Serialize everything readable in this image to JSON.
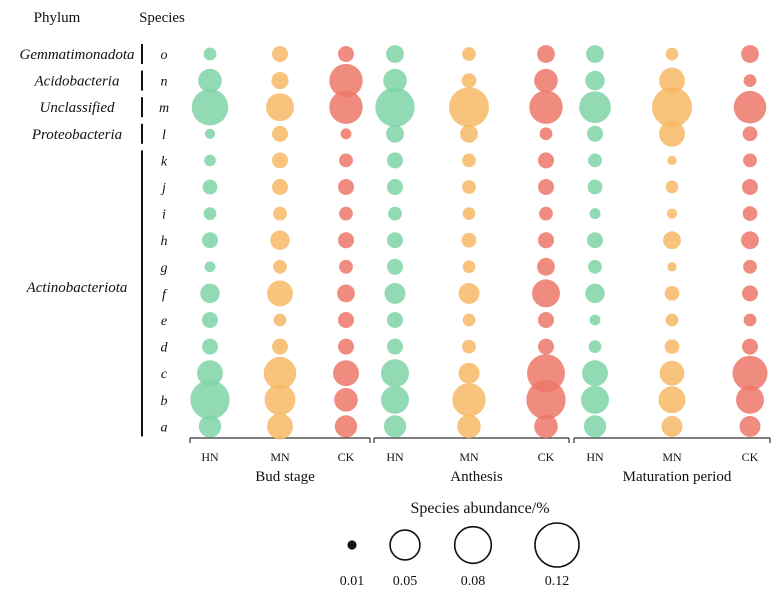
{
  "chart_data": {
    "type": "bubble",
    "headers": {
      "phylum": "Phylum",
      "species": "Species"
    },
    "species": [
      "o",
      "n",
      "m",
      "l",
      "k",
      "j",
      "i",
      "h",
      "g",
      "f",
      "e",
      "d",
      "c",
      "b",
      "a"
    ],
    "phyla": [
      {
        "name": "Gemmatimonadota",
        "species": [
          "o"
        ]
      },
      {
        "name": "Acidobacteria",
        "species": [
          "n"
        ]
      },
      {
        "name": "Unclassified",
        "species": [
          "m"
        ]
      },
      {
        "name": "Proteobacteria",
        "species": [
          "l"
        ]
      },
      {
        "name": "Actinobacteriota",
        "species": [
          "k",
          "j",
          "i",
          "h",
          "g",
          "f",
          "e",
          "d",
          "c",
          "b",
          "a"
        ]
      }
    ],
    "stages": [
      {
        "name": "Bud stage",
        "groups": [
          "HN",
          "MN",
          "CK"
        ]
      },
      {
        "name": "Anthesis",
        "groups": [
          "HN",
          "MN",
          "CK"
        ]
      },
      {
        "name": "Maturation period",
        "groups": [
          "HN",
          "MN",
          "CK"
        ]
      }
    ],
    "group_colors": {
      "HN": "#7fd3a6",
      "MN": "#f7b865",
      "CK": "#ec7868"
    },
    "value_unit": "Species abundance/%",
    "series": [
      {
        "stage": "Bud stage",
        "group": "HN",
        "values": [
          0.008,
          0.04,
          0.11,
          0.004,
          0.006,
          0.012,
          0.008,
          0.015,
          0.005,
          0.025,
          0.015,
          0.015,
          0.05,
          0.13,
          0.035
        ]
      },
      {
        "stage": "Bud stage",
        "group": "MN",
        "values": [
          0.015,
          0.018,
          0.06,
          0.015,
          0.015,
          0.015,
          0.01,
          0.025,
          0.01,
          0.05,
          0.008,
          0.015,
          0.085,
          0.075,
          0.05
        ]
      },
      {
        "stage": "Bud stage",
        "group": "CK",
        "values": [
          0.015,
          0.09,
          0.09,
          0.005,
          0.01,
          0.015,
          0.01,
          0.015,
          0.01,
          0.02,
          0.015,
          0.015,
          0.05,
          0.04,
          0.035
        ]
      },
      {
        "stage": "Anthesis",
        "group": "HN",
        "values": [
          0.02,
          0.04,
          0.13,
          0.02,
          0.015,
          0.015,
          0.01,
          0.015,
          0.015,
          0.03,
          0.015,
          0.015,
          0.06,
          0.06,
          0.035
        ]
      },
      {
        "stage": "Anthesis",
        "group": "MN",
        "values": [
          0.01,
          0.012,
          0.135,
          0.02,
          0.01,
          0.01,
          0.008,
          0.012,
          0.008,
          0.03,
          0.008,
          0.01,
          0.03,
          0.09,
          0.04
        ]
      },
      {
        "stage": "Anthesis",
        "group": "CK",
        "values": [
          0.02,
          0.04,
          0.09,
          0.008,
          0.015,
          0.015,
          0.01,
          0.015,
          0.02,
          0.06,
          0.015,
          0.015,
          0.12,
          0.13,
          0.04
        ]
      },
      {
        "stage": "Maturation period",
        "group": "HN",
        "values": [
          0.02,
          0.025,
          0.08,
          0.015,
          0.01,
          0.012,
          0.005,
          0.015,
          0.01,
          0.025,
          0.005,
          0.008,
          0.05,
          0.06,
          0.035
        ]
      },
      {
        "stage": "Maturation period",
        "group": "MN",
        "values": [
          0.008,
          0.05,
          0.135,
          0.05,
          0.003,
          0.008,
          0.004,
          0.02,
          0.003,
          0.012,
          0.008,
          0.012,
          0.045,
          0.055,
          0.03
        ]
      },
      {
        "stage": "Maturation period",
        "group": "CK",
        "values": [
          0.02,
          0.008,
          0.085,
          0.012,
          0.01,
          0.015,
          0.012,
          0.02,
          0.01,
          0.015,
          0.008,
          0.015,
          0.1,
          0.06,
          0.03
        ]
      }
    ],
    "legend": {
      "title": "Species abundance/%",
      "values": [
        0.01,
        0.05,
        0.08,
        0.12
      ],
      "labels": [
        "0.01",
        "0.05",
        "0.08",
        "0.12"
      ]
    }
  }
}
